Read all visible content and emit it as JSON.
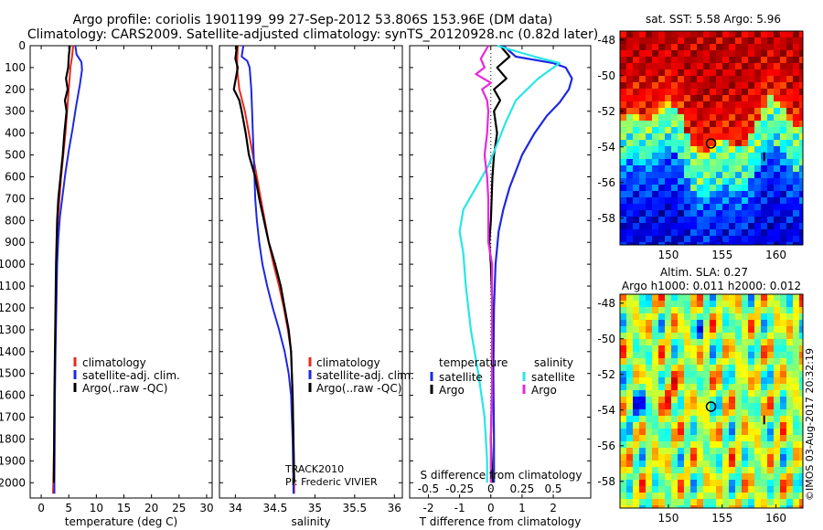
{
  "title": {
    "line1": "Argo profile: coriolis 1901199_99 27-Sep-2012 53.806S 153.96E (DM data)",
    "line2": "Climatology: CARS2009. Satellite-adjusted climatology: synTS_20120928.nc (0.82d later)"
  },
  "depth_axis": {
    "ticks": [
      0,
      100,
      200,
      300,
      400,
      500,
      600,
      700,
      800,
      900,
      1000,
      1100,
      1200,
      1300,
      1400,
      1500,
      1600,
      1700,
      1800,
      1900,
      2000
    ],
    "range": [
      0,
      2070
    ],
    "inverted": true
  },
  "colors": {
    "climatology": "#e8281e",
    "satellite": "#1e28e0",
    "argo": "#000000",
    "satellite_salinity": "#28e6e6",
    "argo_salinity": "#e628dc"
  },
  "chart_data": [
    {
      "type": "line",
      "id": "temperature",
      "xlabel": "temperature (deg C)",
      "ylabel": "",
      "xlim": [
        -2,
        31
      ],
      "xticks": [
        0,
        5,
        10,
        15,
        20,
        25,
        30
      ],
      "ylim": [
        2070,
        0
      ],
      "legend_position": "center",
      "legend": [
        "climatology",
        "satellite-adj. clim.",
        "Argo(..raw -QC)"
      ],
      "series": [
        {
          "name": "climatology",
          "color": "#e8281e",
          "points": [
            [
              5.8,
              0
            ],
            [
              5.6,
              50
            ],
            [
              5.3,
              100
            ],
            [
              5.0,
              200
            ],
            [
              4.7,
              300
            ],
            [
              4.4,
              400
            ],
            [
              4.0,
              500
            ],
            [
              3.6,
              600
            ],
            [
              3.3,
              700
            ],
            [
              3.0,
              800
            ],
            [
              2.85,
              900
            ],
            [
              2.75,
              1000
            ],
            [
              2.65,
              1200
            ],
            [
              2.55,
              1400
            ],
            [
              2.45,
              1600
            ],
            [
              2.35,
              1800
            ],
            [
              2.2,
              2000
            ],
            [
              2.15,
              2050
            ]
          ]
        },
        {
          "name": "satellite-adj. clim.",
          "color": "#1e28e0",
          "points": [
            [
              6.2,
              0
            ],
            [
              6.4,
              40
            ],
            [
              7.3,
              75
            ],
            [
              7.4,
              110
            ],
            [
              7.0,
              180
            ],
            [
              6.3,
              280
            ],
            [
              5.7,
              380
            ],
            [
              5.0,
              480
            ],
            [
              4.4,
              580
            ],
            [
              3.9,
              680
            ],
            [
              3.4,
              780
            ],
            [
              3.1,
              880
            ],
            [
              2.9,
              1000
            ],
            [
              2.75,
              1200
            ],
            [
              2.6,
              1400
            ],
            [
              2.5,
              1600
            ],
            [
              2.45,
              1800
            ],
            [
              2.4,
              2000
            ],
            [
              2.4,
              2050
            ]
          ]
        },
        {
          "name": "Argo(..raw -QC)",
          "color": "#000000",
          "points": [
            [
              5.2,
              0
            ],
            [
              5.0,
              50
            ],
            [
              4.9,
              100
            ],
            [
              4.5,
              150
            ],
            [
              4.8,
              200
            ],
            [
              4.3,
              250
            ],
            [
              4.6,
              300
            ],
            [
              4.2,
              400
            ],
            [
              3.9,
              500
            ],
            [
              3.5,
              600
            ],
            [
              3.1,
              700
            ],
            [
              2.9,
              800
            ],
            [
              2.8,
              900
            ],
            [
              2.7,
              1000
            ],
            [
              2.6,
              1200
            ],
            [
              2.5,
              1400
            ],
            [
              2.4,
              1600
            ],
            [
              2.35,
              1800
            ],
            [
              2.3,
              2000
            ]
          ]
        }
      ]
    },
    {
      "type": "line",
      "id": "salinity",
      "xlabel": "salinity",
      "ylabel": "",
      "xlim": [
        33.8,
        36.1
      ],
      "xticks": [
        34,
        34.5,
        35,
        35.5,
        36
      ],
      "ylim": [
        2070,
        0
      ],
      "legend_position": "center",
      "legend": [
        "climatology",
        "satellite-adj. clim.",
        "Argo(..raw -QC)"
      ],
      "annotation": [
        "TRACK2010",
        "PI: Frederic  VIVIER"
      ],
      "series": [
        {
          "name": "climatology",
          "color": "#e8281e",
          "points": [
            [
              34.03,
              0
            ],
            [
              34.02,
              100
            ],
            [
              34.05,
              200
            ],
            [
              34.12,
              300
            ],
            [
              34.17,
              400
            ],
            [
              34.22,
              500
            ],
            [
              34.27,
              600
            ],
            [
              34.32,
              700
            ],
            [
              34.37,
              800
            ],
            [
              34.42,
              900
            ],
            [
              34.48,
              1000
            ],
            [
              34.55,
              1100
            ],
            [
              34.61,
              1200
            ],
            [
              34.66,
              1300
            ],
            [
              34.7,
              1400
            ],
            [
              34.72,
              1600
            ],
            [
              34.73,
              1800
            ],
            [
              34.74,
              2000
            ],
            [
              34.74,
              2050
            ]
          ]
        },
        {
          "name": "satellite-adj. clim.",
          "color": "#1e28e0",
          "points": [
            [
              34.1,
              0
            ],
            [
              34.08,
              50
            ],
            [
              34.15,
              70
            ],
            [
              34.18,
              100
            ],
            [
              34.2,
              200
            ],
            [
              34.21,
              300
            ],
            [
              34.22,
              400
            ],
            [
              34.23,
              500
            ],
            [
              34.24,
              600
            ],
            [
              34.25,
              700
            ],
            [
              34.27,
              800
            ],
            [
              34.3,
              900
            ],
            [
              34.34,
              1000
            ],
            [
              34.4,
              1100
            ],
            [
              34.47,
              1200
            ],
            [
              34.55,
              1300
            ],
            [
              34.62,
              1400
            ],
            [
              34.67,
              1500
            ],
            [
              34.7,
              1600
            ],
            [
              34.72,
              1800
            ],
            [
              34.73,
              2000
            ],
            [
              34.73,
              2050
            ]
          ]
        },
        {
          "name": "Argo(..raw -QC)",
          "color": "#000000",
          "points": [
            [
              34.02,
              0
            ],
            [
              34.0,
              60
            ],
            [
              34.03,
              100
            ],
            [
              33.98,
              200
            ],
            [
              34.05,
              250
            ],
            [
              34.08,
              300
            ],
            [
              34.13,
              400
            ],
            [
              34.17,
              500
            ],
            [
              34.25,
              600
            ],
            [
              34.3,
              700
            ],
            [
              34.36,
              800
            ],
            [
              34.42,
              900
            ],
            [
              34.5,
              1000
            ],
            [
              34.57,
              1100
            ],
            [
              34.62,
              1200
            ],
            [
              34.67,
              1300
            ],
            [
              34.7,
              1400
            ],
            [
              34.72,
              1600
            ],
            [
              34.73,
              1800
            ],
            [
              34.74,
              2000
            ]
          ]
        }
      ]
    },
    {
      "type": "line",
      "id": "difference",
      "xlabel": "T difference from climatology",
      "xlabel2": "S difference from climatology",
      "ylabel": "",
      "xlim": [
        -2.6,
        3.2
      ],
      "xticks": [
        -2,
        -1,
        0,
        1,
        2
      ],
      "xticklabels": [
        "-2",
        "-1",
        "0",
        "1",
        "2"
      ],
      "s_xlim": [
        -0.65,
        0.8
      ],
      "s_xticks": [
        -0.5,
        -0.25,
        0,
        0.25,
        0.5
      ],
      "s_xticklabels": [
        "-0.5",
        "-0.25",
        "0",
        "0.25",
        "0.5"
      ],
      "ylim": [
        2070,
        0
      ],
      "legend_position": "center",
      "legend_groups": [
        {
          "title": "temperature",
          "items": [
            "satellite",
            "Argo"
          ]
        },
        {
          "title": "salinity",
          "items": [
            "satellite",
            "Argo"
          ]
        }
      ],
      "series": [
        {
          "name": "satellite",
          "group": "temperature",
          "color": "#1e28e0",
          "points": [
            [
              0.4,
              0
            ],
            [
              0.8,
              50
            ],
            [
              2.0,
              80
            ],
            [
              2.4,
              100
            ],
            [
              2.6,
              150
            ],
            [
              2.5,
              200
            ],
            [
              2.2,
              260
            ],
            [
              1.8,
              320
            ],
            [
              1.4,
              400
            ],
            [
              1.0,
              500
            ],
            [
              0.6,
              650
            ],
            [
              0.4,
              750
            ],
            [
              0.25,
              850
            ],
            [
              0.15,
              1000
            ],
            [
              0.1,
              1200
            ],
            [
              0.08,
              1500
            ],
            [
              0.1,
              1800
            ],
            [
              0.1,
              2000
            ]
          ]
        },
        {
          "name": "Argo",
          "group": "temperature",
          "color": "#000000",
          "points": [
            [
              0.3,
              0
            ],
            [
              0.6,
              50
            ],
            [
              0.2,
              100
            ],
            [
              0.5,
              150
            ],
            [
              0.1,
              200
            ],
            [
              0.3,
              250
            ],
            [
              0.1,
              300
            ],
            [
              0.2,
              400
            ],
            [
              0.1,
              500
            ],
            [
              0.05,
              600
            ],
            [
              0.0,
              800
            ],
            [
              -0.05,
              900
            ],
            [
              0.0,
              1000
            ],
            [
              0.05,
              1200
            ],
            [
              0.05,
              1500
            ],
            [
              0.0,
              1800
            ],
            [
              0.05,
              2000
            ]
          ]
        },
        {
          "name": "satellite",
          "group": "salinity",
          "color": "#28e6e6",
          "points": [
            [
              0.05,
              0
            ],
            [
              0.35,
              50
            ],
            [
              0.55,
              80
            ],
            [
              0.38,
              150
            ],
            [
              0.2,
              250
            ],
            [
              0.12,
              350
            ],
            [
              0.05,
              450
            ],
            [
              -0.02,
              550
            ],
            [
              -0.12,
              650
            ],
            [
              -0.22,
              750
            ],
            [
              -0.25,
              850
            ],
            [
              -0.22,
              950
            ],
            [
              -0.2,
              1100
            ],
            [
              -0.16,
              1300
            ],
            [
              -0.1,
              1500
            ],
            [
              -0.05,
              1700
            ],
            [
              -0.03,
              1900
            ],
            [
              -0.03,
              2000
            ]
          ]
        },
        {
          "name": "Argo",
          "group": "salinity",
          "color": "#e628dc",
          "points": [
            [
              -0.02,
              0
            ],
            [
              -0.08,
              60
            ],
            [
              -0.05,
              100
            ],
            [
              -0.12,
              130
            ],
            [
              0.0,
              170
            ],
            [
              -0.07,
              200
            ],
            [
              -0.03,
              250
            ],
            [
              -0.02,
              300
            ],
            [
              -0.03,
              400
            ],
            [
              -0.05,
              500
            ],
            [
              -0.03,
              600
            ],
            [
              -0.02,
              700
            ],
            [
              -0.02,
              800
            ],
            [
              -0.02,
              900
            ],
            [
              0.01,
              1000
            ],
            [
              0.01,
              1200
            ],
            [
              0.01,
              1400
            ],
            [
              0.01,
              1600
            ],
            [
              0.0,
              1800
            ],
            [
              0.0,
              2000
            ]
          ]
        }
      ]
    },
    {
      "type": "heatmap",
      "id": "sst_map",
      "title": "sat. SST: 5.58 Argo: 5.96",
      "xlim": [
        145.5,
        162.5
      ],
      "ylim": [
        -59.5,
        -47.5
      ],
      "xticks": [
        150,
        155,
        160
      ],
      "yticks": [
        -48,
        -50,
        -52,
        -54,
        -56,
        -58
      ],
      "marker": {
        "lon": 153.96,
        "lat": -53.806
      }
    },
    {
      "type": "heatmap",
      "id": "sla_map",
      "title": "Altim. SLA: 0.27",
      "subtitle": "Argo h1000: 0.011 h2000: 0.012",
      "xlim": [
        145.5,
        162.5
      ],
      "ylim": [
        -59.5,
        -47.5
      ],
      "xticks": [
        150,
        155,
        160
      ],
      "yticks": [
        -48,
        -50,
        -52,
        -54,
        -56,
        -58
      ],
      "marker": {
        "lon": 153.96,
        "lat": -53.806
      }
    }
  ],
  "footer": {
    "credit": "©IMOS 03-Aug-2017 20:32:19"
  }
}
